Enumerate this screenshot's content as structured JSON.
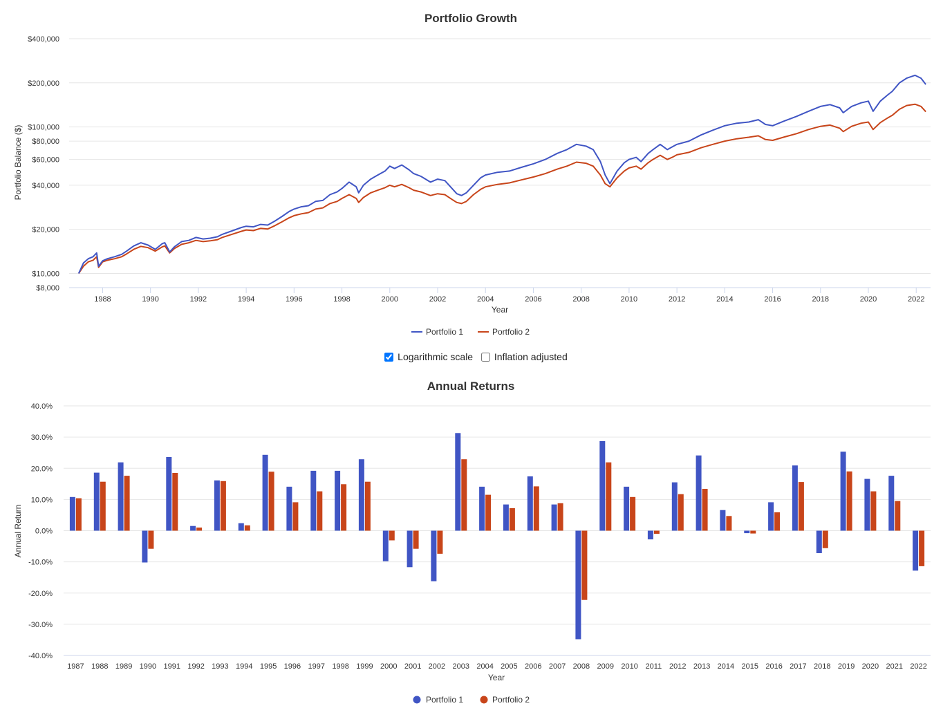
{
  "controls": {
    "log_label": "Logarithmic scale",
    "log_checked": true,
    "inflation_label": "Inflation adjusted",
    "inflation_checked": false
  },
  "colors": {
    "portfolio1": "#4055c4",
    "portfolio2": "#c8451a"
  },
  "chart_data": [
    {
      "type": "line",
      "title": "Portfolio Growth",
      "xlabel": "Year",
      "ylabel": "Portfolio Balance ($)",
      "yscale": "log",
      "ylim": [
        8000,
        400000
      ],
      "yticks": [
        8000,
        10000,
        20000,
        40000,
        60000,
        80000,
        100000,
        200000,
        400000
      ],
      "ytick_labels": [
        "$8,000",
        "$10,000",
        "$20,000",
        "$40,000",
        "$60,000",
        "$80,000",
        "$100,000",
        "$200,000",
        "$400,000"
      ],
      "xlim": [
        1986.6,
        2022.6
      ],
      "xticks": [
        1988,
        1990,
        1992,
        1994,
        1996,
        1998,
        2000,
        2002,
        2004,
        2006,
        2008,
        2010,
        2012,
        2014,
        2016,
        2018,
        2020,
        2022
      ],
      "legend": "bottom-center",
      "series": [
        {
          "name": "Portfolio 1",
          "x": [
            1987.0,
            1987.2,
            1987.4,
            1987.6,
            1987.75,
            1987.83,
            1988.0,
            1988.2,
            1988.5,
            1988.8,
            1989.0,
            1989.3,
            1989.6,
            1989.9,
            1990.2,
            1990.5,
            1990.6,
            1990.8,
            1991.0,
            1991.3,
            1991.6,
            1991.9,
            1992.2,
            1992.5,
            1992.8,
            1993.0,
            1993.4,
            1993.8,
            1994.0,
            1994.3,
            1994.6,
            1994.9,
            1995.2,
            1995.5,
            1995.8,
            1996.0,
            1996.3,
            1996.6,
            1996.9,
            1997.2,
            1997.5,
            1997.8,
            1998.0,
            1998.3,
            1998.6,
            1998.7,
            1998.9,
            1999.2,
            1999.5,
            1999.8,
            2000.0,
            2000.2,
            2000.5,
            2000.8,
            2001.0,
            2001.3,
            2001.7,
            2002.0,
            2002.3,
            2002.6,
            2002.8,
            2003.0,
            2003.2,
            2003.5,
            2003.8,
            2004.0,
            2004.5,
            2005.0,
            2005.5,
            2006.0,
            2006.5,
            2007.0,
            2007.4,
            2007.8,
            2008.2,
            2008.5,
            2008.8,
            2009.0,
            2009.2,
            2009.5,
            2009.8,
            2010.0,
            2010.3,
            2010.5,
            2010.8,
            2011.0,
            2011.3,
            2011.6,
            2011.8,
            2012.0,
            2012.5,
            2013.0,
            2013.5,
            2014.0,
            2014.5,
            2015.0,
            2015.4,
            2015.7,
            2016.0,
            2016.5,
            2017.0,
            2017.5,
            2018.0,
            2018.4,
            2018.8,
            2018.95,
            2019.3,
            2019.7,
            2020.0,
            2020.2,
            2020.5,
            2020.8,
            2021.0,
            2021.3,
            2021.6,
            2021.95,
            2022.2,
            2022.4
          ],
          "y": [
            10000,
            11800,
            12600,
            13000,
            13800,
            11200,
            12200,
            12600,
            13000,
            13500,
            14200,
            15400,
            16200,
            15600,
            14600,
            16000,
            16200,
            14000,
            15200,
            16500,
            16800,
            17600,
            17200,
            17400,
            17800,
            18500,
            19500,
            20600,
            21000,
            20800,
            21600,
            21400,
            22800,
            24500,
            26500,
            27500,
            28500,
            29000,
            31000,
            31500,
            34500,
            36000,
            38000,
            42000,
            39000,
            35500,
            40000,
            44000,
            47000,
            50000,
            54000,
            52000,
            55000,
            51000,
            48000,
            46000,
            42000,
            44000,
            43000,
            38000,
            35000,
            34000,
            35500,
            40000,
            45000,
            47000,
            49000,
            50000,
            53000,
            56000,
            60000,
            66000,
            70000,
            76000,
            74000,
            70000,
            58000,
            47000,
            41000,
            50000,
            57000,
            60000,
            62000,
            58000,
            66000,
            70000,
            76000,
            70000,
            73000,
            76000,
            80000,
            88000,
            95000,
            102000,
            106000,
            108000,
            112000,
            104000,
            102000,
            110000,
            118000,
            128000,
            138000,
            142000,
            135000,
            125000,
            138000,
            146000,
            150000,
            128000,
            150000,
            165000,
            175000,
            200000,
            215000,
            225000,
            215000,
            195000
          ]
        },
        {
          "name": "Portfolio 2",
          "x": [
            1987.0,
            1987.2,
            1987.4,
            1987.6,
            1987.75,
            1987.83,
            1988.0,
            1988.2,
            1988.5,
            1988.8,
            1989.0,
            1989.3,
            1989.6,
            1989.9,
            1990.2,
            1990.5,
            1990.6,
            1990.8,
            1991.0,
            1991.3,
            1991.6,
            1991.9,
            1992.2,
            1992.5,
            1992.8,
            1993.0,
            1993.4,
            1993.8,
            1994.0,
            1994.3,
            1994.6,
            1994.9,
            1995.2,
            1995.5,
            1995.8,
            1996.0,
            1996.3,
            1996.6,
            1996.9,
            1997.2,
            1997.5,
            1997.8,
            1998.0,
            1998.3,
            1998.6,
            1998.7,
            1998.9,
            1999.2,
            1999.5,
            1999.8,
            2000.0,
            2000.2,
            2000.5,
            2000.8,
            2001.0,
            2001.3,
            2001.7,
            2002.0,
            2002.3,
            2002.6,
            2002.8,
            2003.0,
            2003.2,
            2003.5,
            2003.8,
            2004.0,
            2004.5,
            2005.0,
            2005.5,
            2006.0,
            2006.5,
            2007.0,
            2007.4,
            2007.8,
            2008.2,
            2008.5,
            2008.8,
            2009.0,
            2009.2,
            2009.5,
            2009.8,
            2010.0,
            2010.3,
            2010.5,
            2010.8,
            2011.0,
            2011.3,
            2011.6,
            2011.8,
            2012.0,
            2012.5,
            2013.0,
            2013.5,
            2014.0,
            2014.5,
            2015.0,
            2015.4,
            2015.7,
            2016.0,
            2016.5,
            2017.0,
            2017.5,
            2018.0,
            2018.4,
            2018.8,
            2018.95,
            2019.3,
            2019.7,
            2020.0,
            2020.2,
            2020.5,
            2020.8,
            2021.0,
            2021.3,
            2021.6,
            2021.95,
            2022.2,
            2022.4
          ],
          "y": [
            10000,
            11200,
            12000,
            12300,
            13000,
            11000,
            12000,
            12300,
            12600,
            13000,
            13600,
            14600,
            15300,
            15000,
            14200,
            15200,
            15400,
            13800,
            14800,
            15800,
            16200,
            16800,
            16500,
            16700,
            17000,
            17600,
            18500,
            19400,
            19800,
            19600,
            20300,
            20100,
            21200,
            22500,
            24000,
            24800,
            25500,
            26000,
            27500,
            28000,
            30000,
            31000,
            32500,
            34500,
            32500,
            30500,
            33000,
            35500,
            37000,
            38500,
            40000,
            39000,
            40500,
            38500,
            37000,
            36000,
            34000,
            35000,
            34500,
            32000,
            30500,
            30000,
            31000,
            34500,
            37500,
            39000,
            40500,
            41500,
            43500,
            45500,
            48000,
            51500,
            54000,
            57500,
            56500,
            54000,
            47000,
            41000,
            39000,
            45000,
            50000,
            52500,
            54000,
            51500,
            57000,
            60000,
            64000,
            60000,
            62000,
            64500,
            67000,
            72000,
            76000,
            80000,
            83000,
            85000,
            87000,
            82000,
            81000,
            85500,
            90000,
            96000,
            101000,
            103000,
            98000,
            93000,
            101000,
            106000,
            108000,
            96000,
            107000,
            115000,
            120000,
            132000,
            140000,
            143000,
            138000,
            127000
          ]
        }
      ]
    },
    {
      "type": "bar",
      "title": "Annual Returns",
      "xlabel": "Year",
      "ylabel": "Annual Return",
      "ylim": [
        -40,
        40
      ],
      "yticks": [
        -40,
        -30,
        -20,
        -10,
        0,
        10,
        20,
        30,
        40
      ],
      "ytick_labels": [
        "-40.0%",
        "-30.0%",
        "-20.0%",
        "-10.0%",
        "0.0%",
        "10.0%",
        "20.0%",
        "30.0%",
        "40.0%"
      ],
      "legend": "bottom-center",
      "categories": [
        "1987",
        "1988",
        "1989",
        "1990",
        "1991",
        "1992",
        "1993",
        "1994",
        "1995",
        "1996",
        "1997",
        "1998",
        "1999",
        "2000",
        "2001",
        "2002",
        "2003",
        "2004",
        "2005",
        "2006",
        "2007",
        "2008",
        "2009",
        "2010",
        "2011",
        "2012",
        "2013",
        "2014",
        "2015",
        "2016",
        "2017",
        "2018",
        "2019",
        "2020",
        "2021",
        "2022"
      ],
      "series": [
        {
          "name": "Portfolio 1",
          "values": [
            10.8,
            18.6,
            21.9,
            -10.2,
            23.6,
            1.5,
            16.1,
            2.4,
            24.3,
            14.1,
            19.2,
            19.2,
            22.9,
            -9.8,
            -11.7,
            -16.2,
            31.3,
            14.1,
            8.4,
            17.4,
            8.4,
            -34.8,
            28.7,
            14.1,
            -2.8,
            15.5,
            24.1,
            6.6,
            -0.8,
            9.1,
            20.9,
            -7.2,
            25.3,
            16.6,
            17.6,
            -12.8
          ]
        },
        {
          "name": "Portfolio 2",
          "values": [
            10.4,
            15.7,
            17.6,
            -5.8,
            18.5,
            1.0,
            15.9,
            1.7,
            18.9,
            9.1,
            12.6,
            14.9,
            15.7,
            -3.1,
            -5.8,
            -7.4,
            22.9,
            11.5,
            7.2,
            14.2,
            8.8,
            -22.2,
            21.9,
            10.8,
            -1.0,
            11.7,
            13.4,
            4.7,
            -0.9,
            5.9,
            15.6,
            -5.6,
            19.0,
            12.6,
            9.5,
            -11.4
          ]
        }
      ]
    }
  ]
}
